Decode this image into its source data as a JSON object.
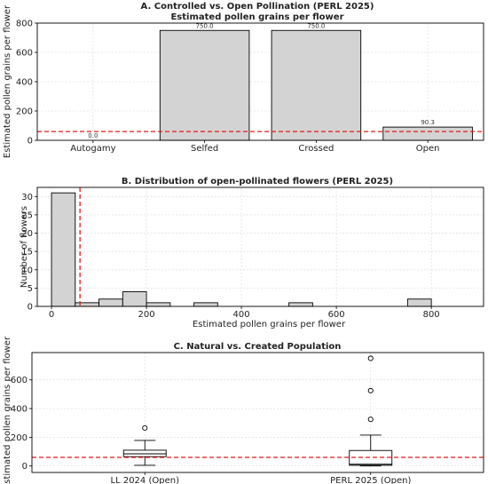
{
  "reference_line": {
    "value": 60,
    "color": "#e41a1c"
  },
  "chart_data": [
    {
      "id": "A",
      "type": "bar",
      "title": "A. Controlled vs. Open Pollination (PERL 2025)",
      "subtitle": "Estimated pollen grains per flower",
      "xlabel": "",
      "ylabel": "Estimated pollen grains per flower",
      "categories": [
        "Autogamy",
        "Selfed",
        "Crossed",
        "Open"
      ],
      "values": [
        0.0,
        750.0,
        750.0,
        90.3
      ],
      "value_labels": [
        "0.0",
        "750.0",
        "750.0",
        "90.3"
      ],
      "ylim": [
        0,
        800
      ],
      "yticks": [
        0,
        200,
        400,
        600,
        800
      ],
      "grid": true,
      "bar_color": "#d3d3d3"
    },
    {
      "id": "B",
      "type": "bar",
      "subtype": "histogram",
      "title": "B. Distribution of open-pollinated flowers (PERL 2025)",
      "xlabel": "Estimated pollen grains per flower",
      "ylabel": "Number of flowers",
      "bins": [
        {
          "x0": 0,
          "x1": 50,
          "count": 31
        },
        {
          "x0": 50,
          "x1": 100,
          "count": 1
        },
        {
          "x0": 100,
          "x1": 150,
          "count": 2
        },
        {
          "x0": 150,
          "x1": 200,
          "count": 4
        },
        {
          "x0": 200,
          "x1": 250,
          "count": 1
        },
        {
          "x0": 300,
          "x1": 350,
          "count": 1
        },
        {
          "x0": 500,
          "x1": 550,
          "count": 1
        },
        {
          "x0": 750,
          "x1": 800,
          "count": 2
        }
      ],
      "xlim": [
        -30,
        910
      ],
      "ylim": [
        0,
        32.5
      ],
      "xticks": [
        0,
        200,
        400,
        600,
        800
      ],
      "yticks": [
        0,
        5,
        10,
        15,
        20,
        25,
        30
      ],
      "grid": true
    },
    {
      "id": "C",
      "type": "box",
      "title": "C. Natural vs. Created Population",
      "xlabel": "",
      "ylabel": "Estimated pollen grains per flower",
      "categories": [
        "LL 2024 (Open)",
        "PERL 2025 (Open)"
      ],
      "boxes": [
        {
          "whisker_low": 5,
          "q1": 65,
          "median": 85,
          "q3": 110,
          "whisker_high": 178,
          "outliers": [
            265
          ]
        },
        {
          "whisker_low": 0,
          "q1": 5,
          "median": 12,
          "q3": 108,
          "whisker_high": 215,
          "outliers": [
            325,
            525,
            750
          ]
        }
      ],
      "ylim": [
        -45,
        790
      ],
      "yticks": [
        0,
        200,
        400,
        600
      ],
      "grid": true
    }
  ]
}
